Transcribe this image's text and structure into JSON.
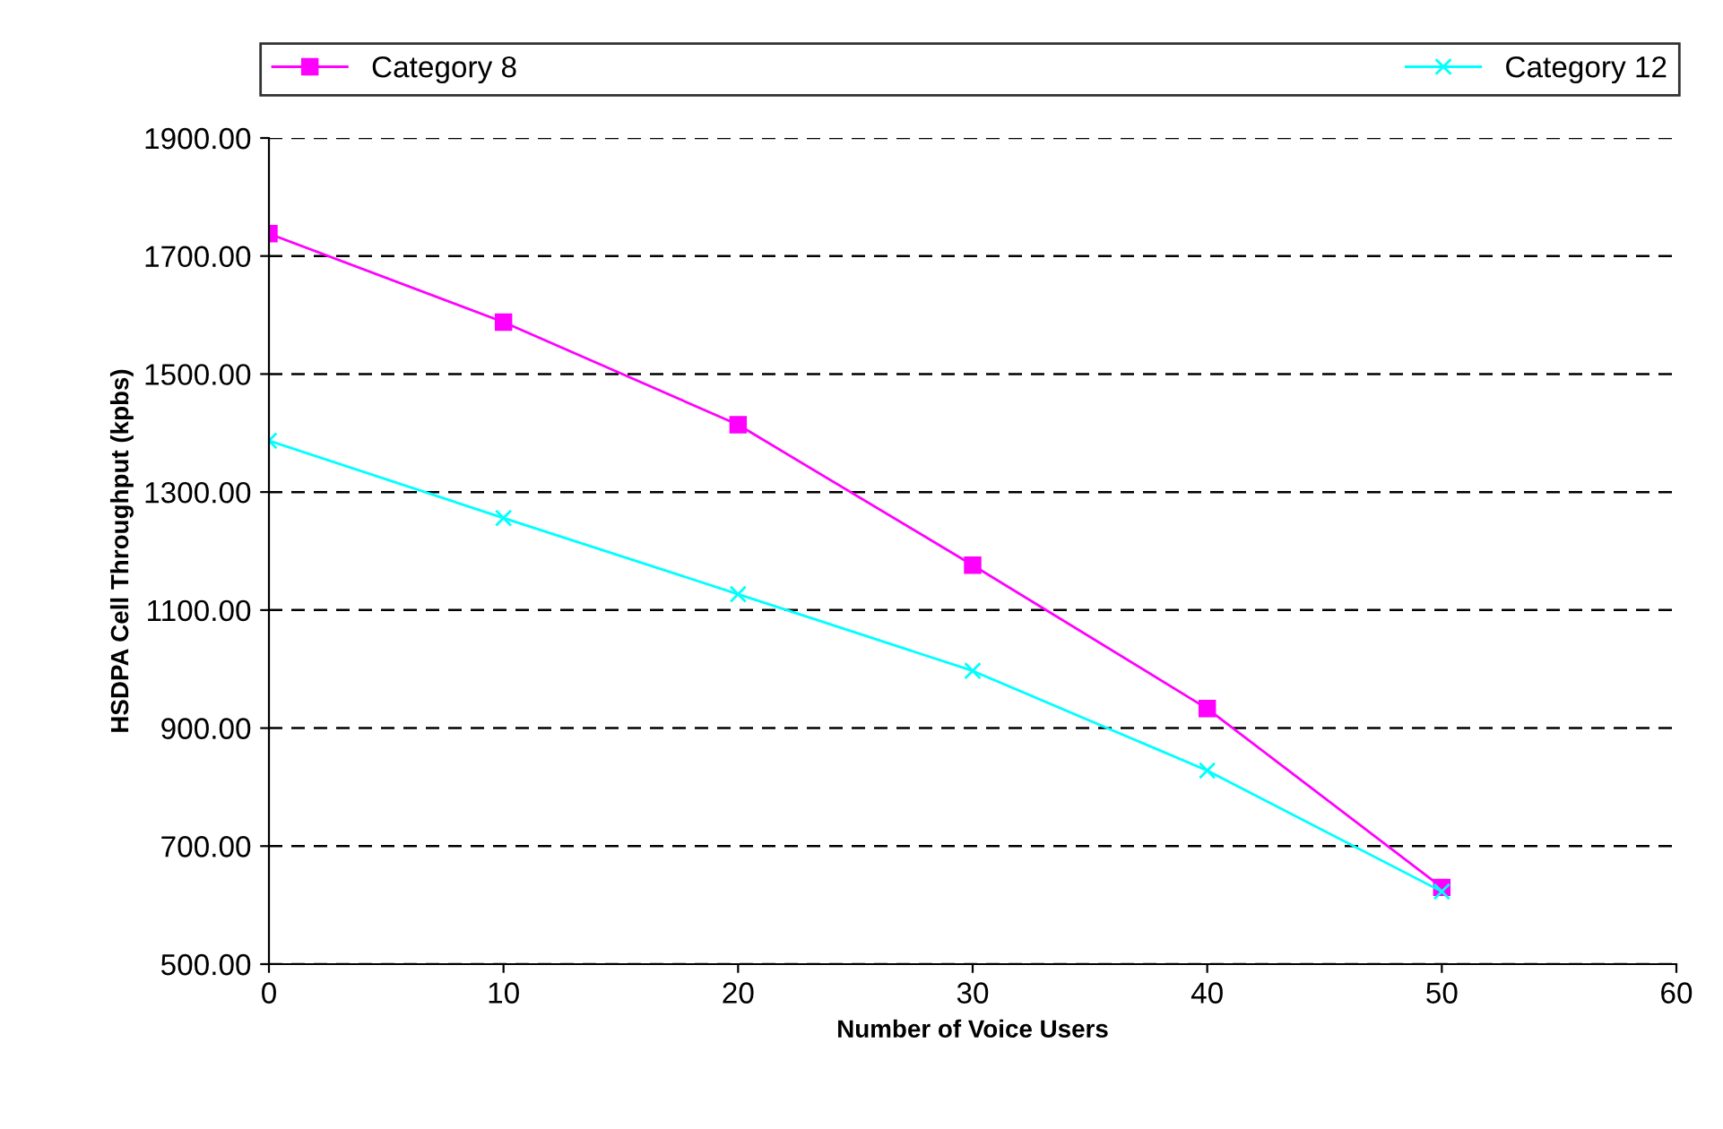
{
  "chart_data": {
    "type": "line",
    "xlabel": "Number of Voice Users",
    "ylabel": "HSDPA Cell Throughput (kpbs)",
    "x": [
      0,
      10,
      20,
      30,
      40,
      50
    ],
    "series": [
      {
        "name": "Category 8",
        "color": "#ff00ff",
        "marker": "square",
        "values": [
          1738,
          1588,
          1414,
          1176,
          933,
          630
        ]
      },
      {
        "name": "Category 12",
        "color": "#00ffff",
        "marker": "cross",
        "values": [
          1387,
          1256,
          1127,
          997,
          828,
          623
        ]
      }
    ],
    "xlim": [
      0,
      60
    ],
    "xticks": [
      0,
      10,
      20,
      30,
      40,
      50,
      60
    ],
    "ylim": [
      500,
      1900
    ],
    "yticks": [
      {
        "value": 500,
        "label": "500.00"
      },
      {
        "value": 700,
        "label": "700.00"
      },
      {
        "value": 900,
        "label": "900.00"
      },
      {
        "value": 1100,
        "label": "1100.00"
      },
      {
        "value": 1300,
        "label": "1300.00"
      },
      {
        "value": 1500,
        "label": "1500.00"
      },
      {
        "value": 1700,
        "label": "1700.00"
      },
      {
        "value": 1900,
        "label": "1900.00"
      }
    ],
    "grid": "y",
    "legend": "top",
    "line_style": "solid"
  }
}
